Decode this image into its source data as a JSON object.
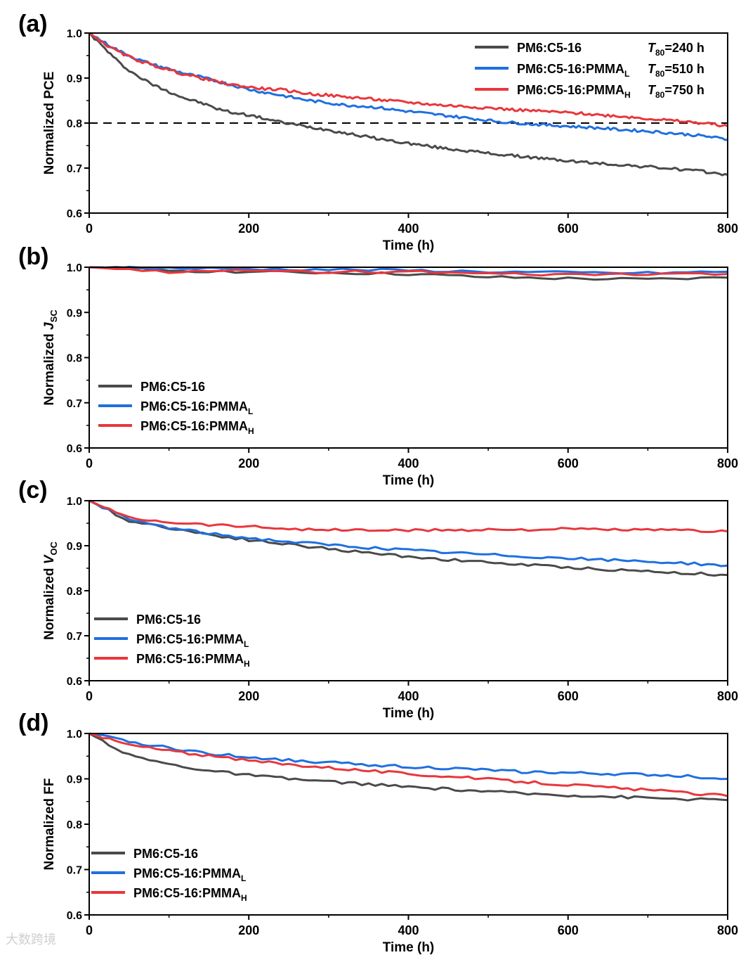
{
  "colors": {
    "black_series": "#4a4a4a",
    "blue_series": "#1f6fe0",
    "red_series": "#e8373c",
    "axis": "#000000"
  },
  "watermark": "大数跨境",
  "chart_data": [
    {
      "type": "line",
      "panel_label": "(a)",
      "xlabel": "Time (h)",
      "ylabel": "Normalized PCE",
      "ylabel_italic": "",
      "ylabel_sub": "",
      "xlim": [
        0,
        800
      ],
      "ylim": [
        0.6,
        1.0
      ],
      "xticks": [
        0,
        200,
        400,
        600,
        800
      ],
      "yticks": [
        0.6,
        0.7,
        0.8,
        0.9,
        1.0
      ],
      "xtick_labels": [
        "0",
        "200",
        "400",
        "600",
        "800"
      ],
      "ytick_labels": [
        "0.6",
        "0.7",
        "0.8",
        "0.9",
        "1.0"
      ],
      "reference_line": {
        "y": 0.8,
        "style": "dashed"
      },
      "legend_position": "top-right",
      "x": [
        0,
        20,
        40,
        60,
        80,
        100,
        120,
        140,
        160,
        180,
        200,
        220,
        240,
        260,
        280,
        300,
        320,
        340,
        360,
        380,
        400,
        420,
        440,
        460,
        480,
        500,
        520,
        540,
        560,
        580,
        600,
        620,
        640,
        660,
        680,
        700,
        720,
        740,
        760,
        780,
        800
      ],
      "series": [
        {
          "name": "PM6:C5-16",
          "sub": "",
          "annotation": "=240 h",
          "color": "#4a4a4a",
          "values": [
            1.0,
            0.965,
            0.93,
            0.905,
            0.885,
            0.87,
            0.855,
            0.845,
            0.832,
            0.823,
            0.818,
            0.81,
            0.802,
            0.796,
            0.79,
            0.785,
            0.778,
            0.772,
            0.766,
            0.76,
            0.755,
            0.75,
            0.745,
            0.741,
            0.737,
            0.733,
            0.729,
            0.726,
            0.723,
            0.719,
            0.716,
            0.713,
            0.71,
            0.708,
            0.705,
            0.703,
            0.7,
            0.697,
            0.694,
            0.69,
            0.685
          ]
        },
        {
          "name": "PM6:C5-16:PMMA",
          "sub": "L",
          "annotation": "=510 h",
          "color": "#1f6fe0",
          "values": [
            1.0,
            0.978,
            0.958,
            0.942,
            0.93,
            0.92,
            0.91,
            0.902,
            0.893,
            0.884,
            0.875,
            0.868,
            0.862,
            0.855,
            0.849,
            0.845,
            0.84,
            0.838,
            0.835,
            0.83,
            0.826,
            0.822,
            0.818,
            0.814,
            0.81,
            0.806,
            0.802,
            0.8,
            0.797,
            0.795,
            0.793,
            0.791,
            0.789,
            0.786,
            0.784,
            0.782,
            0.779,
            0.776,
            0.773,
            0.769,
            0.763
          ]
        },
        {
          "name": "PM6:C5-16:PMMA",
          "sub": "H",
          "annotation": "=750 h",
          "color": "#e8373c",
          "values": [
            1.0,
            0.975,
            0.955,
            0.94,
            0.928,
            0.918,
            0.908,
            0.9,
            0.892,
            0.885,
            0.88,
            0.876,
            0.874,
            0.869,
            0.864,
            0.862,
            0.858,
            0.856,
            0.852,
            0.849,
            0.846,
            0.843,
            0.84,
            0.838,
            0.836,
            0.834,
            0.831,
            0.829,
            0.827,
            0.825,
            0.823,
            0.821,
            0.818,
            0.816,
            0.813,
            0.81,
            0.807,
            0.804,
            0.801,
            0.798,
            0.793
          ]
        }
      ]
    },
    {
      "type": "line",
      "panel_label": "(b)",
      "xlabel": "Time (h)",
      "ylabel": "Normalized ",
      "ylabel_italic": "J",
      "ylabel_sub": "SC",
      "xlim": [
        0,
        800
      ],
      "ylim": [
        0.6,
        1.0
      ],
      "xticks": [
        0,
        200,
        400,
        600,
        800
      ],
      "yticks": [
        0.6,
        0.7,
        0.8,
        0.9,
        1.0
      ],
      "xtick_labels": [
        "0",
        "200",
        "400",
        "600",
        "800"
      ],
      "ytick_labels": [
        "0.6",
        "0.7",
        "0.8",
        "0.9",
        "1.0"
      ],
      "legend_position": "bottom-left",
      "x": [
        0,
        100,
        200,
        300,
        400,
        500,
        600,
        700,
        800
      ],
      "series": [
        {
          "name": "PM6:C5-16",
          "sub": "",
          "color": "#4a4a4a",
          "values": [
            1.0,
            0.993,
            0.99,
            0.988,
            0.985,
            0.978,
            0.975,
            0.973,
            0.977
          ]
        },
        {
          "name": "PM6:C5-16:PMMA",
          "sub": "L",
          "color": "#1f6fe0",
          "values": [
            1.0,
            0.998,
            0.996,
            0.995,
            0.993,
            0.99,
            0.988,
            0.987,
            0.99
          ]
        },
        {
          "name": "PM6:C5-16:PMMA",
          "sub": "H",
          "color": "#e8373c",
          "values": [
            1.0,
            0.99,
            0.992,
            0.99,
            0.99,
            0.985,
            0.983,
            0.985,
            0.985
          ]
        }
      ]
    },
    {
      "type": "line",
      "panel_label": "(c)",
      "xlabel": "Time (h)",
      "ylabel": "Normalized ",
      "ylabel_italic": "V",
      "ylabel_sub": "OC",
      "xlim": [
        0,
        800
      ],
      "ylim": [
        0.6,
        1.0
      ],
      "xticks": [
        0,
        200,
        400,
        600,
        800
      ],
      "yticks": [
        0.6,
        0.7,
        0.8,
        0.9,
        1.0
      ],
      "xtick_labels": [
        "0",
        "200",
        "400",
        "600",
        "800"
      ],
      "ytick_labels": [
        "0.6",
        "0.7",
        "0.8",
        "0.9",
        "1.0"
      ],
      "legend_position": "bottom-left",
      "x": [
        0,
        50,
        100,
        150,
        200,
        250,
        300,
        350,
        400,
        450,
        500,
        550,
        600,
        650,
        700,
        750,
        800
      ],
      "series": [
        {
          "name": "PM6:C5-16",
          "sub": "",
          "color": "#4a4a4a",
          "values": [
            1.0,
            0.955,
            0.94,
            0.925,
            0.913,
            0.903,
            0.893,
            0.884,
            0.876,
            0.869,
            0.863,
            0.857,
            0.852,
            0.847,
            0.843,
            0.839,
            0.835
          ]
        },
        {
          "name": "PM6:C5-16:PMMA",
          "sub": "L",
          "color": "#1f6fe0",
          "values": [
            1.0,
            0.958,
            0.94,
            0.927,
            0.917,
            0.909,
            0.902,
            0.896,
            0.89,
            0.885,
            0.88,
            0.876,
            0.872,
            0.868,
            0.865,
            0.861,
            0.856
          ]
        },
        {
          "name": "PM6:C5-16:PMMA",
          "sub": "H",
          "color": "#e8373c",
          "values": [
            1.0,
            0.962,
            0.953,
            0.947,
            0.943,
            0.938,
            0.935,
            0.935,
            0.934,
            0.935,
            0.936,
            0.936,
            0.937,
            0.936,
            0.935,
            0.934,
            0.932
          ]
        }
      ]
    },
    {
      "type": "line",
      "panel_label": "(d)",
      "xlabel": "Time (h)",
      "ylabel": "Normalized FF",
      "ylabel_italic": "",
      "ylabel_sub": "",
      "xlim": [
        0,
        800
      ],
      "ylim": [
        0.6,
        1.0
      ],
      "xticks": [
        0,
        200,
        400,
        600,
        800
      ],
      "yticks": [
        0.6,
        0.7,
        0.8,
        0.9,
        1.0
      ],
      "xtick_labels": [
        "0",
        "200",
        "400",
        "600",
        "800"
      ],
      "ytick_labels": [
        "0.6",
        "0.7",
        "0.8",
        "0.9",
        "1.0"
      ],
      "legend_position": "bottom-left",
      "x": [
        0,
        50,
        100,
        150,
        200,
        250,
        300,
        350,
        400,
        450,
        500,
        550,
        600,
        650,
        700,
        750,
        800
      ],
      "series": [
        {
          "name": "PM6:C5-16",
          "sub": "",
          "color": "#4a4a4a",
          "values": [
            1.0,
            0.952,
            0.932,
            0.918,
            0.908,
            0.9,
            0.894,
            0.888,
            0.882,
            0.877,
            0.872,
            0.867,
            0.864,
            0.861,
            0.858,
            0.855,
            0.853
          ]
        },
        {
          "name": "PM6:C5-16:PMMA",
          "sub": "L",
          "color": "#1f6fe0",
          "values": [
            1.0,
            0.982,
            0.968,
            0.956,
            0.948,
            0.941,
            0.936,
            0.931,
            0.927,
            0.923,
            0.919,
            0.915,
            0.913,
            0.911,
            0.909,
            0.906,
            0.9
          ]
        },
        {
          "name": "PM6:C5-16:PMMA",
          "sub": "H",
          "color": "#e8373c",
          "values": [
            1.0,
            0.975,
            0.962,
            0.95,
            0.94,
            0.932,
            0.925,
            0.918,
            0.911,
            0.905,
            0.899,
            0.893,
            0.887,
            0.881,
            0.875,
            0.869,
            0.862
          ]
        }
      ]
    }
  ]
}
